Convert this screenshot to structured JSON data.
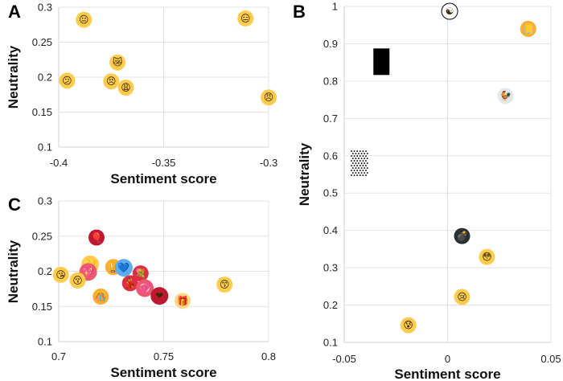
{
  "chart_data": [
    {
      "panel": "A",
      "type": "scatter",
      "xlabel": "Sentiment score",
      "ylabel": "Neutrality",
      "xlim": [
        -0.4,
        -0.3
      ],
      "ylim": [
        0.1,
        0.3
      ],
      "xticks": [
        "-0.4",
        "-0.35",
        "-0.3"
      ],
      "yticks": [
        "0.1",
        "0.15",
        "0.2",
        "0.25",
        "0.3"
      ],
      "grid": true,
      "points": [
        {
          "emoji": "😐",
          "icon": "neutral-face",
          "color": "#FFCC4D",
          "x": -0.388,
          "y": 0.282
        },
        {
          "emoji": "😑",
          "icon": "expressionless-face",
          "color": "#FFCC4D",
          "x": -0.311,
          "y": 0.284
        },
        {
          "emoji": "😿",
          "icon": "crying-cat-face",
          "color": "#FFCC4D",
          "x": -0.372,
          "y": 0.221
        },
        {
          "emoji": "😕",
          "icon": "confused-face",
          "color": "#FFCC4D",
          "x": -0.396,
          "y": 0.195
        },
        {
          "emoji": "😣",
          "icon": "persevering-face",
          "color": "#FFCC4D",
          "x": -0.375,
          "y": 0.194
        },
        {
          "emoji": "😩",
          "icon": "weary-face",
          "color": "#FFCC4D",
          "x": -0.368,
          "y": 0.185
        },
        {
          "emoji": "😠",
          "icon": "angry-face",
          "color": "#FFCC4D",
          "x": -0.3,
          "y": 0.171
        }
      ]
    },
    {
      "panel": "B",
      "type": "scatter",
      "xlabel": "Sentiment score",
      "ylabel": "Neutrality",
      "xlim": [
        -0.05,
        0.05
      ],
      "ylim": [
        0.1,
        1
      ],
      "xticks": [
        "-0.05",
        "0",
        "0.05"
      ],
      "yticks": [
        "0.1",
        "0.2",
        "0.3",
        "0.4",
        "0.5",
        "0.6",
        "0.7",
        "0.8",
        "0.9",
        "1"
      ],
      "grid": true,
      "points": [
        {
          "emoji": "☯",
          "icon": "yin-yang",
          "color": "#FFFFFF",
          "x": 0.001,
          "y": 0.987
        },
        {
          "emoji": "📒",
          "icon": "ledger-notebook",
          "color": "#FFAC33",
          "x": 0.039,
          "y": 0.94
        },
        {
          "emoji": "▮",
          "icon": "black-rectangle",
          "color": "#000000",
          "x": -0.032,
          "y": 0.853
        },
        {
          "emoji": "🐓",
          "icon": "rooster",
          "color": "#E1E8ED",
          "x": 0.028,
          "y": 0.76
        },
        {
          "emoji": "⬚",
          "icon": "dotted-rectangle",
          "color": "#FFFFFF",
          "x": -0.043,
          "y": 0.58
        },
        {
          "emoji": "💣",
          "icon": "bomb",
          "color": "#292F33",
          "x": 0.007,
          "y": 0.385
        },
        {
          "emoji": "😳",
          "icon": "flushed-face",
          "color": "#FFCC4D",
          "x": 0.019,
          "y": 0.329
        },
        {
          "emoji": "😢",
          "icon": "crying-face",
          "color": "#FFCC4D",
          "x": 0.007,
          "y": 0.222
        },
        {
          "emoji": "😰",
          "icon": "anxious-face-with-sweat",
          "color": "#FFCC4D",
          "x": -0.019,
          "y": 0.146
        }
      ]
    },
    {
      "panel": "C",
      "type": "scatter",
      "xlabel": "Sentiment score",
      "ylabel": "Neutrality",
      "xlim": [
        0.7,
        0.8
      ],
      "ylim": [
        0.1,
        0.3
      ],
      "xticks": [
        "0.7",
        "0.75",
        "0.8"
      ],
      "yticks": [
        "0.1",
        "0.15",
        "0.2",
        "0.25",
        "0.3"
      ],
      "grid": true,
      "points": [
        {
          "emoji": "🎈",
          "icon": "balloon",
          "color": "#BE1931",
          "x": 0.718,
          "y": 0.248
        },
        {
          "emoji": "💛",
          "icon": "yellow-heart",
          "color": "#FFCC4D",
          "x": 0.715,
          "y": 0.21
        },
        {
          "emoji": "🏆",
          "icon": "trophy",
          "color": "#FFAC33",
          "x": 0.726,
          "y": 0.206
        },
        {
          "emoji": "💙",
          "icon": "blue-heart",
          "color": "#5DADEC",
          "x": 0.731,
          "y": 0.205
        },
        {
          "emoji": "💖",
          "icon": "sparkling-heart",
          "color": "#EA596E",
          "x": 0.714,
          "y": 0.199
        },
        {
          "emoji": "😘",
          "icon": "face-blowing-kiss",
          "color": "#FFCC4D",
          "x": 0.701,
          "y": 0.195
        },
        {
          "emoji": "💐",
          "icon": "bouquet",
          "color": "#DD2E44",
          "x": 0.739,
          "y": 0.197
        },
        {
          "emoji": "😚",
          "icon": "kissing-face-closed-eyes",
          "color": "#FFCC4D",
          "x": 0.709,
          "y": 0.187
        },
        {
          "emoji": "💃",
          "icon": "woman-dancing",
          "color": "#DD2E44",
          "x": 0.734,
          "y": 0.183
        },
        {
          "emoji": "😙",
          "icon": "kissing-face-smiling-eyes",
          "color": "#FFCC4D",
          "x": 0.779,
          "y": 0.181
        },
        {
          "emoji": "💞",
          "icon": "revolving-hearts",
          "color": "#EA596E",
          "x": 0.741,
          "y": 0.176
        },
        {
          "emoji": "❤",
          "icon": "red-heart",
          "color": "#BE1931",
          "x": 0.748,
          "y": 0.165
        },
        {
          "emoji": "🎊",
          "icon": "confetti-ball",
          "color": "#FFAC33",
          "x": 0.72,
          "y": 0.164
        },
        {
          "emoji": "🎁",
          "icon": "wrapped-gift",
          "color": "#FDD888",
          "x": 0.759,
          "y": 0.158
        }
      ]
    }
  ]
}
